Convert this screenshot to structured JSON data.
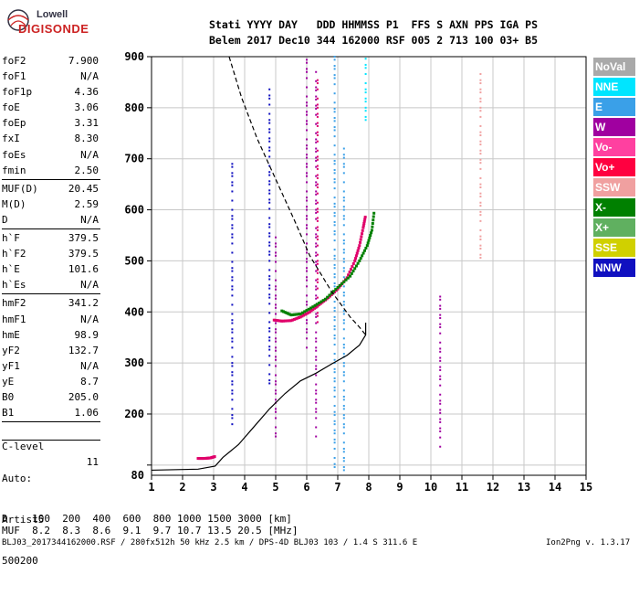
{
  "logo": {
    "line1": "Lowell",
    "line2": "DIGISONDE"
  },
  "header": {
    "line1": "Stati YYYY DAY   DDD HHMMSS P1  FFS S AXN PPS IGA PS",
    "line2": "Belem 2017 Dec10 344 162000 RSF 005 2 713 100 03+ B5"
  },
  "params_group1": [
    {
      "key": "foF2",
      "value": "7.900"
    },
    {
      "key": "foF1",
      "value": "N/A"
    },
    {
      "key": "foF1p",
      "value": "4.36"
    },
    {
      "key": "foE",
      "value": "3.06"
    },
    {
      "key": "foEp",
      "value": "3.31"
    },
    {
      "key": "fxI",
      "value": "8.30"
    },
    {
      "key": "foEs",
      "value": "N/A"
    },
    {
      "key": "fmin",
      "value": "2.50"
    }
  ],
  "params_group2": [
    {
      "key": "MUF(D)",
      "value": "20.45"
    },
    {
      "key": "M(D)",
      "value": "2.59"
    },
    {
      "key": "D",
      "value": "N/A"
    }
  ],
  "params_group3": [
    {
      "key": "h`F",
      "value": "379.5"
    },
    {
      "key": "h`F2",
      "value": "379.5"
    },
    {
      "key": "h`E",
      "value": "101.6"
    },
    {
      "key": "h`Es",
      "value": "N/A"
    }
  ],
  "params_group4": [
    {
      "key": "hmF2",
      "value": "341.2"
    },
    {
      "key": "hmF1",
      "value": "N/A"
    },
    {
      "key": "hmE",
      "value": "98.9"
    },
    {
      "key": "yF2",
      "value": "132.7"
    },
    {
      "key": "yF1",
      "value": "N/A"
    },
    {
      "key": "yE",
      "value": "8.7"
    },
    {
      "key": "B0",
      "value": "205.0"
    },
    {
      "key": "B1",
      "value": "1.06"
    }
  ],
  "clevel": {
    "key": "C-level",
    "value": "11"
  },
  "auto": {
    "line1": "Auto:",
    "line2": "Artist5",
    "line3": "500200"
  },
  "legend": [
    {
      "label": "NoVal",
      "color": "#a9a9a9"
    },
    {
      "label": "NNE",
      "color": "#00e5ff"
    },
    {
      "label": "E",
      "color": "#3aa0e8"
    },
    {
      "label": "W",
      "color": "#a000a0"
    },
    {
      "label": "Vo-",
      "color": "#ff40a0"
    },
    {
      "label": "Vo+",
      "color": "#ff0040"
    },
    {
      "label": "SSW",
      "color": "#f0a0a0"
    },
    {
      "label": "X-",
      "color": "#008000"
    },
    {
      "label": "X+",
      "color": "#60b060"
    },
    {
      "label": "SSE",
      "color": "#d0d000"
    },
    {
      "label": "NNW",
      "color": "#1010c0"
    }
  ],
  "muf_table": {
    "line1": "D    100  200  400  600  800 1000 1500 3000 [km]",
    "line2": "MUF  8.2  8.3  8.6  9.1  9.7 10.7 13.5 20.5 [MHz]"
  },
  "footer": {
    "left": "BLJ03_2017344162000.RSF / 280fx512h 50 kHz 2.5 km / DPS-4D BLJ03 103 / 1.4 S 311.6 E",
    "right": "Ion2Png v. 1.3.17"
  },
  "chart_data": {
    "type": "scatter",
    "xlabel": "",
    "ylabel": "",
    "xlim": [
      1,
      15
    ],
    "ylim": [
      80,
      900
    ],
    "xticks": [
      1,
      2,
      3,
      4,
      5,
      6,
      7,
      8,
      9,
      10,
      11,
      12,
      13,
      14,
      15
    ],
    "yticks": [
      100,
      200,
      300,
      400,
      500,
      600,
      700,
      800,
      900
    ],
    "ytick_labels": [
      "",
      "200",
      "300",
      "400",
      "500",
      "600",
      "700",
      "800",
      "900"
    ],
    "yaxis_extra_label": "80",
    "grid": true,
    "traces": [
      {
        "name": "O-trace",
        "color": "#e0006a",
        "points": [
          [
            4.95,
            384
          ],
          [
            5.2,
            382
          ],
          [
            5.5,
            383
          ],
          [
            5.8,
            390
          ],
          [
            6.1,
            400
          ],
          [
            6.4,
            414
          ],
          [
            6.7,
            428
          ],
          [
            7.0,
            445
          ],
          [
            7.3,
            467
          ],
          [
            7.55,
            500
          ],
          [
            7.7,
            530
          ],
          [
            7.82,
            565
          ],
          [
            7.9,
            590
          ]
        ]
      },
      {
        "name": "X-trace",
        "color": "#008000",
        "points": [
          [
            5.2,
            402
          ],
          [
            5.5,
            394
          ],
          [
            5.8,
            396
          ],
          [
            6.2,
            410
          ],
          [
            6.6,
            425
          ],
          [
            7.0,
            448
          ],
          [
            7.4,
            470
          ],
          [
            7.7,
            500
          ],
          [
            7.95,
            530
          ],
          [
            8.1,
            560
          ],
          [
            8.18,
            600
          ]
        ]
      },
      {
        "name": "E-trace",
        "color": "#e0006a",
        "points": [
          [
            2.5,
            113
          ],
          [
            2.7,
            113
          ],
          [
            2.9,
            114
          ],
          [
            3.06,
            117
          ]
        ]
      }
    ],
    "columns": [
      {
        "x": 6.0,
        "color": "#a000a0",
        "y": [
          330,
          900
        ]
      },
      {
        "x": 6.3,
        "color": "#a000a0",
        "y": [
          150,
          880
        ]
      },
      {
        "x": 6.35,
        "color": "#e0006a",
        "y": [
          380,
          860
        ]
      },
      {
        "x": 6.9,
        "color": "#3aa0e8",
        "y": [
          90,
          900
        ]
      },
      {
        "x": 7.2,
        "color": "#3aa0e8",
        "y": [
          90,
          720
        ]
      },
      {
        "x": 3.6,
        "color": "#1010c0",
        "y": [
          180,
          700
        ]
      },
      {
        "x": 4.8,
        "color": "#1010c0",
        "y": [
          260,
          840
        ]
      },
      {
        "x": 5.0,
        "color": "#a000a0",
        "y": [
          150,
          550
        ]
      },
      {
        "x": 10.3,
        "color": "#a000a0",
        "y": [
          130,
          430
        ]
      },
      {
        "x": 11.6,
        "color": "#f0a0a0",
        "y": [
          500,
          880
        ]
      },
      {
        "x": 7.9,
        "color": "#00e5ff",
        "y": [
          770,
          900
        ]
      }
    ],
    "profile": {
      "name": "electron density profile",
      "color": "#000",
      "points": [
        [
          1.0,
          90
        ],
        [
          2.5,
          92
        ],
        [
          3.05,
          98
        ],
        [
          3.3,
          115
        ],
        [
          3.8,
          140
        ],
        [
          4.3,
          175
        ],
        [
          4.8,
          210
        ],
        [
          5.3,
          240
        ],
        [
          5.8,
          265
        ],
        [
          6.3,
          280
        ],
        [
          6.8,
          298
        ],
        [
          7.3,
          315
        ],
        [
          7.7,
          335
        ],
        [
          7.9,
          355
        ],
        [
          7.9,
          379
        ]
      ]
    },
    "model_curve": {
      "name": "model curve",
      "color": "#000",
      "dashed": true,
      "points": [
        [
          3.5,
          900
        ],
        [
          3.9,
          820
        ],
        [
          4.4,
          740
        ],
        [
          5.0,
          660
        ],
        [
          5.6,
          580
        ],
        [
          6.1,
          510
        ],
        [
          6.5,
          470
        ],
        [
          6.8,
          440
        ],
        [
          7.1,
          415
        ],
        [
          7.4,
          390
        ],
        [
          7.7,
          370
        ],
        [
          7.9,
          355
        ]
      ]
    }
  }
}
